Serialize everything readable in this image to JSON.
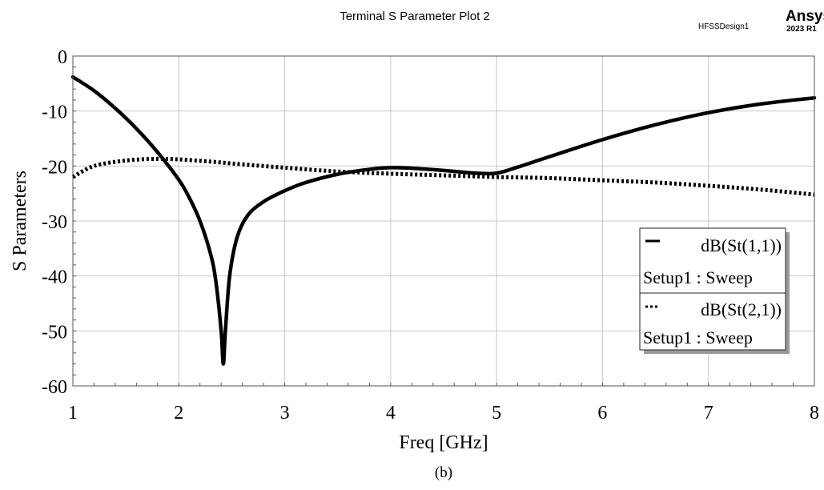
{
  "header": {
    "design_name": "HFSSDesign1",
    "brand": "Ansys",
    "version": "2023 R1"
  },
  "caption": "(b)",
  "chart_data": {
    "type": "line",
    "title": "Terminal S Parameter Plot 2",
    "xlabel": "Freq [GHz]",
    "ylabel": "S Parameters",
    "xlim": [
      1,
      8
    ],
    "ylim": [
      -60,
      0
    ],
    "xticks": [
      1,
      2,
      3,
      4,
      5,
      6,
      7,
      8
    ],
    "yticks": [
      0,
      -10,
      -20,
      -30,
      -40,
      -50,
      -60
    ],
    "grid": true,
    "legend_position": "right",
    "series": [
      {
        "name": "dB(St(1,1))",
        "setup": "Setup1 : Sweep",
        "style": "solid",
        "x": [
          1.0,
          1.2,
          1.4,
          1.6,
          1.8,
          2.0,
          2.1,
          2.2,
          2.3,
          2.35,
          2.4,
          2.42,
          2.44,
          2.48,
          2.55,
          2.65,
          2.8,
          3.0,
          3.2,
          3.5,
          3.8,
          4.0,
          4.2,
          4.5,
          4.8,
          5.0,
          5.2,
          5.5,
          6.0,
          6.5,
          7.0,
          7.5,
          8.0
        ],
        "y": [
          -3.8,
          -6.3,
          -9.5,
          -13.2,
          -17.5,
          -22.5,
          -25.8,
          -30.0,
          -36.0,
          -41.0,
          -50.0,
          -56.0,
          -50.0,
          -40.0,
          -33.0,
          -29.0,
          -26.5,
          -24.5,
          -23.0,
          -21.5,
          -20.6,
          -20.3,
          -20.4,
          -20.8,
          -21.3,
          -21.3,
          -20.2,
          -18.3,
          -15.2,
          -12.5,
          -10.3,
          -8.7,
          -7.6
        ]
      },
      {
        "name": "dB(St(2,1))",
        "setup": "Setup1 : Sweep",
        "style": "dotted",
        "x": [
          1.0,
          1.2,
          1.5,
          1.8,
          2.0,
          2.3,
          2.6,
          3.0,
          3.5,
          4.0,
          4.5,
          5.0,
          5.5,
          6.0,
          6.5,
          7.0,
          7.5,
          8.0
        ],
        "y": [
          -22.0,
          -20.0,
          -19.0,
          -18.7,
          -18.8,
          -19.2,
          -19.7,
          -20.3,
          -21.0,
          -21.4,
          -21.7,
          -22.0,
          -22.2,
          -22.6,
          -23.0,
          -23.6,
          -24.3,
          -25.2
        ]
      }
    ]
  }
}
